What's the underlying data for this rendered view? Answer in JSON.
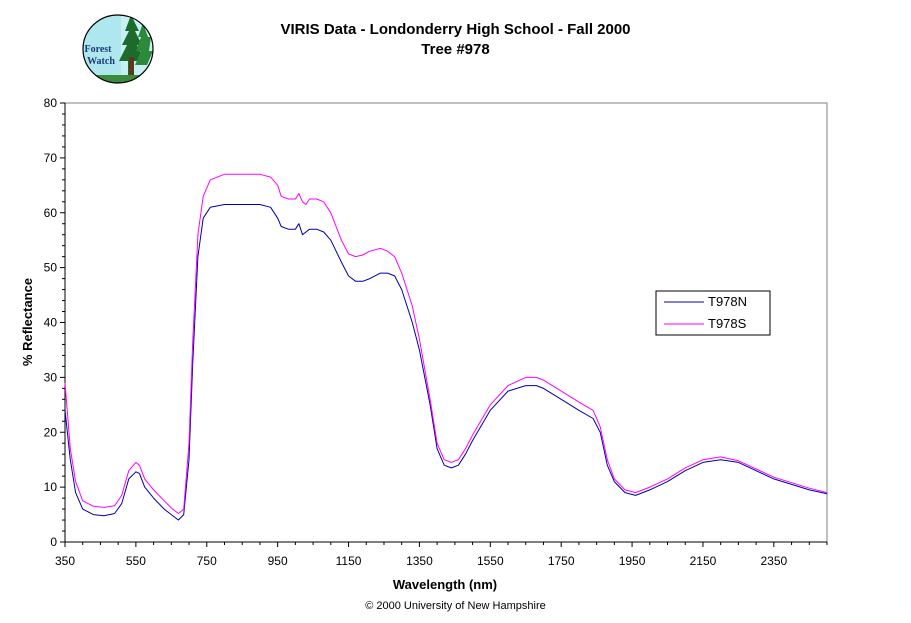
{
  "header": {
    "title": "VIRIS Data - Londonderry High School - Fall 2000",
    "subtitle": "Tree #978",
    "logo_text_line1": "Forest",
    "logo_text_line2": "Watch"
  },
  "footer": {
    "copyright": "© 2000 University of New Hampshire"
  },
  "chart_data": {
    "type": "line",
    "xlabel": "Wavelength (nm)",
    "ylabel": "% Reflectance",
    "xlim": [
      350,
      2500
    ],
    "ylim": [
      0,
      80
    ],
    "xticks": [
      "350",
      "550",
      "750",
      "950",
      "1150",
      "1350",
      "1550",
      "1750",
      "1950",
      "2150",
      "2350"
    ],
    "yticks": [
      "0",
      "10",
      "20",
      "30",
      "40",
      "50",
      "60",
      "70",
      "80"
    ],
    "grid": false,
    "legend_position": "right",
    "series": [
      {
        "name": "T978N",
        "color": "#0000aa",
        "x": [
          350,
          365,
          380,
          400,
          430,
          460,
          490,
          510,
          530,
          550,
          560,
          575,
          600,
          630,
          650,
          670,
          685,
          700,
          710,
          725,
          740,
          760,
          800,
          850,
          900,
          930,
          950,
          960,
          980,
          1000,
          1010,
          1020,
          1030,
          1040,
          1060,
          1080,
          1100,
          1130,
          1150,
          1170,
          1190,
          1210,
          1240,
          1260,
          1280,
          1300,
          1330,
          1350,
          1380,
          1400,
          1420,
          1440,
          1460,
          1480,
          1500,
          1550,
          1600,
          1650,
          1680,
          1700,
          1750,
          1800,
          1840,
          1860,
          1880,
          1900,
          1930,
          1960,
          2000,
          2050,
          2100,
          2150,
          2200,
          2250,
          2300,
          2350,
          2400,
          2450,
          2500
        ],
        "values": [
          24,
          15,
          9,
          6,
          5,
          4.8,
          5.2,
          7,
          11.5,
          12.8,
          12.5,
          10,
          8,
          6,
          5,
          4,
          5,
          15,
          32,
          52,
          59,
          61,
          61.5,
          61.5,
          61.5,
          61,
          59,
          57.5,
          57,
          57,
          58,
          56,
          56.5,
          57,
          57,
          56.5,
          55,
          51,
          48.5,
          47.5,
          47.5,
          48,
          49,
          49,
          48.5,
          46,
          40,
          35,
          25,
          17,
          14,
          13.5,
          14,
          16,
          18.5,
          24,
          27.5,
          28.5,
          28.5,
          28,
          26,
          24,
          22.5,
          20,
          14,
          11,
          9,
          8.5,
          9.5,
          11,
          13,
          14.5,
          15,
          14.5,
          13,
          11.5,
          10.5,
          9.5,
          8.8
        ]
      },
      {
        "name": "T978S",
        "color": "#ff00ff",
        "x": [
          350,
          365,
          380,
          400,
          430,
          460,
          490,
          510,
          530,
          550,
          560,
          575,
          600,
          630,
          650,
          670,
          685,
          700,
          710,
          725,
          740,
          760,
          800,
          850,
          900,
          930,
          950,
          960,
          980,
          1000,
          1010,
          1020,
          1030,
          1040,
          1060,
          1080,
          1100,
          1130,
          1150,
          1170,
          1190,
          1210,
          1240,
          1260,
          1280,
          1300,
          1330,
          1350,
          1380,
          1400,
          1420,
          1440,
          1460,
          1480,
          1500,
          1550,
          1600,
          1650,
          1680,
          1700,
          1750,
          1800,
          1840,
          1860,
          1880,
          1900,
          1930,
          1960,
          2000,
          2050,
          2100,
          2150,
          2200,
          2250,
          2300,
          2350,
          2400,
          2450,
          2500
        ],
        "values": [
          29,
          17,
          11,
          7.5,
          6.5,
          6.3,
          6.6,
          8.5,
          13,
          14.5,
          14,
          11.5,
          9.5,
          7.5,
          6.2,
          5.2,
          6,
          18,
          36,
          56,
          63,
          66,
          67,
          67,
          67,
          66.5,
          65,
          63,
          62.5,
          62.5,
          63.5,
          62,
          61.5,
          62.5,
          62.5,
          62,
          60,
          55,
          52.5,
          52,
          52.3,
          53,
          53.5,
          53,
          52,
          49,
          43,
          37,
          26,
          18,
          15,
          14.5,
          15,
          17,
          19.5,
          25,
          28.5,
          30,
          30,
          29.5,
          27.5,
          25.5,
          24,
          21,
          15,
          11.5,
          9.5,
          9,
          10,
          11.5,
          13.5,
          15,
          15.5,
          14.8,
          13.3,
          11.8,
          10.8,
          9.8,
          9
        ]
      }
    ]
  }
}
